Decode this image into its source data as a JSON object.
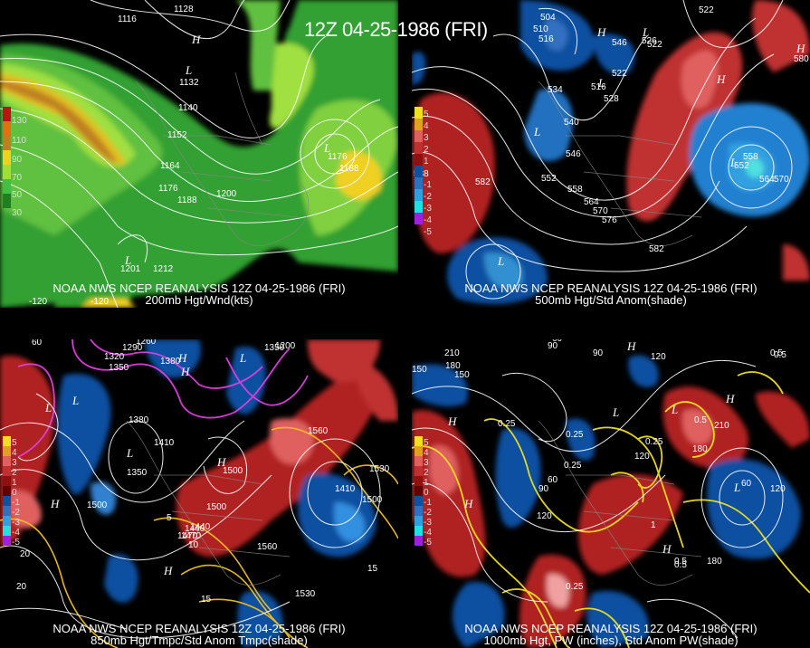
{
  "main_title": "12Z 04-25-1986 (FRI)",
  "panels": [
    {
      "id": "p1",
      "header": "NOAA NWS NCEP REANALYSIS 12Z 04-25-1986 (FRI)",
      "subtitle": "200mb Hgt/Wnd(kts)",
      "colorbar": {
        "labels": [
          "130",
          "110",
          "90",
          "70",
          "50",
          "30"
        ],
        "colors": [
          "#c01010",
          "#e07010",
          "#c08020",
          "#f0d020",
          "#a0e030",
          "#40c040",
          "#208020"
        ]
      },
      "contour_labels": [
        "1116",
        "1128",
        "1132",
        "1140",
        "1152",
        "1164",
        "1176",
        "1188",
        "1200",
        "1176",
        "1188",
        "1212",
        "1201",
        "-120",
        "-120"
      ],
      "centers": [
        {
          "t": "H"
        },
        {
          "t": "L"
        },
        {
          "t": "L"
        },
        {
          "t": "L"
        }
      ]
    },
    {
      "id": "p2",
      "header": "NOAA NWS NCEP REANALYSIS 12Z 04-25-1986 (FRI)",
      "subtitle": "500mb Hgt/Std Anom(shade)",
      "colorbar": {
        "labels": [
          "5",
          "4",
          "3",
          "2",
          "1",
          "-1",
          "-2",
          "-3",
          "-4",
          "-5"
        ],
        "colors": [
          "#f0e020",
          "#e0a020",
          "#e06060",
          "#c03030",
          "#901010",
          "#1050a0",
          "#3070c0",
          "#30a0e0",
          "#20e0e0",
          "#a020e0"
        ]
      },
      "contour_labels": [
        "504",
        "510",
        "516",
        "522",
        "522",
        "522",
        "546",
        "534",
        "540",
        "528",
        "516",
        "552",
        "558",
        "564",
        "570",
        "576",
        "582",
        "582",
        "546",
        "558",
        "564",
        "570",
        "588",
        "526",
        "580",
        "552"
      ],
      "centers": [
        {
          "t": "H"
        },
        {
          "t": "L"
        },
        {
          "t": "L"
        },
        {
          "t": "L"
        },
        {
          "t": "H"
        },
        {
          "t": "L"
        },
        {
          "t": "L"
        },
        {
          "t": "H"
        }
      ]
    },
    {
      "id": "p3",
      "header": "NOAA NWS NCEP REANALYSIS 12Z 04-25-1986 (FRI)",
      "subtitle": "850mb Hgt/Tmpc/Std Anom Tmpc(shade)",
      "colorbar": {
        "labels": [
          "5",
          "4",
          "3",
          "2",
          "1",
          "0",
          "-1",
          "-2",
          "-3",
          "-4",
          "-5"
        ],
        "colors": [
          "#f0e020",
          "#e0a020",
          "#e06060",
          "#c03030",
          "#901010",
          "#600000",
          "#1050a0",
          "#3070c0",
          "#30a0e0",
          "#20e0e0",
          "#a020e0"
        ]
      },
      "contour_labels": [
        "1260",
        "1290",
        "1320",
        "1350",
        "1380",
        "1260",
        "1200",
        "1350",
        "1380",
        "1410",
        "1440",
        "1470",
        "1500",
        "1530",
        "1560",
        "1350",
        "1500",
        "1470",
        "1500",
        "1440",
        "1530",
        "1410",
        "1500",
        "1560",
        "60",
        "20",
        "15",
        "5",
        "10",
        "15",
        "20"
      ],
      "centers": [
        {
          "t": "H"
        },
        {
          "t": "L"
        },
        {
          "t": "L"
        },
        {
          "t": "L"
        },
        {
          "t": "H"
        },
        {
          "t": "H"
        },
        {
          "t": "L"
        },
        {
          "t": "H"
        },
        {
          "t": "H"
        }
      ]
    },
    {
      "id": "p4",
      "header": "NOAA NWS NCEP REANALYSIS 12Z 04-25-1986 (FRI)",
      "subtitle": "1000mb Hgt, PW (inches), Std Anom PW(shade)",
      "colorbar": {
        "labels": [
          "5",
          "4",
          "3",
          "2",
          "1",
          "0",
          "-1",
          "-2",
          "-3",
          "-4",
          "-5"
        ],
        "colors": [
          "#f0e020",
          "#e0a020",
          "#e06060",
          "#c03030",
          "#901010",
          "#600000",
          "#1050a0",
          "#3070c0",
          "#30a0e0",
          "#20e0e0",
          "#a020e0"
        ]
      },
      "contour_labels": [
        "210",
        "180",
        "150",
        "60",
        "90",
        "90",
        "120",
        "30",
        "0.5",
        "0.25",
        "0.25",
        "0.25",
        "0.25",
        "0.5",
        "210",
        "180",
        "120",
        "60",
        "90",
        "120",
        "180",
        "0.5",
        "0.25",
        "120",
        "60",
        "150",
        "0.5",
        "1",
        "0.5"
      ],
      "centers": [
        {
          "t": "H"
        },
        {
          "t": "L"
        },
        {
          "t": "H"
        },
        {
          "t": "L"
        },
        {
          "t": "H"
        },
        {
          "t": "H"
        },
        {
          "t": "L"
        },
        {
          "t": "H"
        }
      ]
    }
  ]
}
